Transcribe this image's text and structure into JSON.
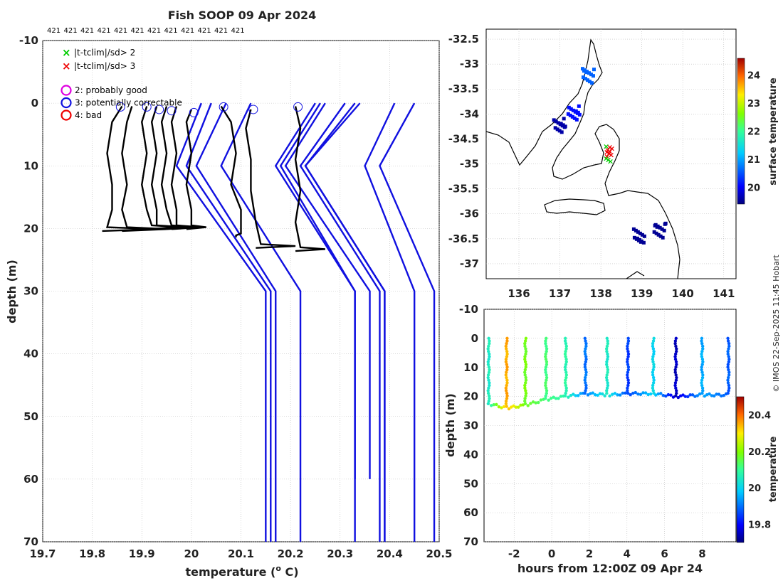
{
  "title": "Fish SOOP 09 Apr 2024",
  "credit": "© IMOS 22-Sep-2025 11:45 Hobart",
  "colors": {
    "profile": "#000000",
    "climatology": "#1010e0",
    "flag_good": "#e000e0",
    "flag_corr": "#1010e0",
    "flag_bad": "#ee0000",
    "cross2": "#00cc00",
    "cross3": "#ee0000"
  },
  "chart_data": [
    {
      "id": "profiles",
      "type": "line",
      "title": "Fish SOOP 09 Apr 2024",
      "xlabel": "temperature (",
      "xlabel_sup": "o",
      "xlabel_end": " C)",
      "ylabel": "depth (m)",
      "xlim": [
        19.7,
        20.5
      ],
      "ylim": [
        -10,
        70
      ],
      "xticks": [
        "19.7",
        "19.8",
        "19.9",
        "20",
        "20.1",
        "20.2",
        "20.3",
        "20.4",
        "20.5"
      ],
      "yticks": [
        "-10",
        "0",
        "10",
        "20",
        "30",
        "40",
        "50",
        "60",
        "70"
      ],
      "grid": true,
      "top_labels": [
        "421",
        "421",
        "421",
        "421",
        "421",
        "421",
        "421",
        "421",
        "421",
        "421",
        "421",
        "421"
      ],
      "legend": {
        "crosses": [
          {
            "label": "|t-tclim|/sd> 2",
            "color": "#00cc00"
          },
          {
            "label": "|t-tclim|/sd> 3",
            "color": "#ee0000"
          }
        ],
        "circles": [
          {
            "label": "2: probably good",
            "color": "#e000e0"
          },
          {
            "label": "3: potentially correctable",
            "color": "#1010e0"
          },
          {
            "label": "4: bad",
            "color": "#ee0000"
          }
        ]
      },
      "climatology_series": [
        {
          "surface": 20.02,
          "z10": 19.97,
          "z30": 20.15,
          "bottom": 70
        },
        {
          "surface": 20.04,
          "z10": 19.99,
          "z30": 20.16,
          "bottom": 70
        },
        {
          "surface": 20.07,
          "z10": 20.01,
          "z30": 20.17,
          "bottom": 70
        },
        {
          "surface": 20.12,
          "z10": 20.06,
          "z30": 20.22,
          "bottom": 70
        },
        {
          "surface": 20.25,
          "z10": 20.17,
          "z30": 20.33,
          "bottom": 60
        },
        {
          "surface": 20.26,
          "z10": 20.18,
          "z30": 20.33,
          "bottom": 70
        },
        {
          "surface": 20.27,
          "z10": 20.19,
          "z30": 20.36,
          "bottom": 60
        },
        {
          "surface": 20.31,
          "z10": 20.22,
          "z30": 20.38,
          "bottom": 70
        },
        {
          "surface": 20.33,
          "z10": 20.23,
          "z30": 20.39,
          "bottom": 70
        },
        {
          "surface": 20.34,
          "z10": 20.23,
          "z30": 20.39,
          "bottom": 70
        },
        {
          "surface": 20.41,
          "z10": 20.35,
          "z30": 20.45,
          "bottom": 70
        },
        {
          "surface": 20.45,
          "z10": 20.38,
          "z30": 20.49,
          "bottom": 70
        }
      ],
      "profile_series": [
        {
          "t": [
            19.86,
            19.84,
            19.83,
            19.84,
            19.84,
            19.83
          ],
          "z": [
            0.5,
            3,
            8,
            13,
            17,
            19.8
          ],
          "bottom_end": 19.93
        },
        {
          "t": [
            19.88,
            19.87,
            19.86,
            19.87,
            19.86,
            19.87
          ],
          "z": [
            0.5,
            3,
            8,
            13,
            17,
            19.8
          ],
          "bottom_end": 19.95
        },
        {
          "t": [
            19.91,
            19.9,
            19.91,
            19.9,
            19.91,
            19.92
          ],
          "z": [
            0.5,
            3,
            8,
            13,
            17,
            19.5
          ],
          "bottom_end": 19.98
        },
        {
          "t": [
            19.93,
            19.92,
            19.93,
            19.92,
            19.93,
            19.93
          ],
          "z": [
            0.5,
            3,
            8,
            13,
            17,
            19.5
          ],
          "bottom_end": 19.99
        },
        {
          "t": [
            19.95,
            19.94,
            19.95,
            19.94,
            19.95,
            19.96
          ],
          "z": [
            0.5,
            3,
            8,
            13,
            17,
            19.5
          ],
          "bottom_end": 20.01
        },
        {
          "t": [
            19.97,
            19.96,
            19.97,
            19.96,
            19.97,
            19.97
          ],
          "z": [
            0.5,
            3,
            8,
            13,
            17,
            19.5
          ],
          "bottom_end": 20.02
        },
        {
          "t": [
            20.0,
            19.99,
            20.0,
            19.99,
            20.0,
            20.0
          ],
          "z": [
            1,
            3,
            8,
            13,
            17,
            19.5
          ],
          "bottom_end": 20.03
        },
        {
          "t": [
            20.06,
            20.08,
            20.09,
            20.08,
            20.1,
            20.1
          ],
          "z": [
            0.5,
            3,
            8,
            13,
            17,
            20.8
          ],
          "bottom_end": 20.09
        },
        {
          "t": [
            20.12,
            20.11,
            20.12,
            20.12,
            20.13,
            20.14
          ],
          "z": [
            1,
            4,
            9,
            14,
            19,
            22.5
          ],
          "bottom_end": 20.21
        },
        {
          "t": [
            20.21,
            20.22,
            20.21,
            20.22,
            20.21,
            20.22
          ],
          "z": [
            0.5,
            4,
            9,
            14,
            19,
            23
          ],
          "bottom_end": 20.27
        }
      ],
      "flag_circles": [
        {
          "t": 19.857,
          "z": 0.6
        },
        {
          "t": 19.91,
          "z": 0.6
        },
        {
          "t": 19.935,
          "z": 1.0
        },
        {
          "t": 19.96,
          "z": 1.2
        },
        {
          "t": 20.005,
          "z": 1.5
        },
        {
          "t": 20.065,
          "z": 0.6
        },
        {
          "t": 20.125,
          "z": 1.0
        },
        {
          "t": 20.215,
          "z": 0.6
        }
      ]
    },
    {
      "id": "map",
      "type": "heatmap",
      "xlim": [
        135.2,
        141.3
      ],
      "ylim": [
        -37.3,
        -32.3
      ],
      "xticks": [
        "136",
        "137",
        "138",
        "139",
        "140",
        "141"
      ],
      "yticks": [
        "-32.5",
        "-33",
        "-33.5",
        "-34",
        "-34.5",
        "-35",
        "-35.5",
        "-36",
        "-36.5",
        "-37"
      ],
      "colorbar": {
        "label": "surface temperature",
        "range": [
          19.4,
          24.6
        ],
        "ticks": [
          "20",
          "21",
          "22",
          "23",
          "24"
        ]
      },
      "track_center": {
        "lon": 138.2,
        "lat": -34.8
      },
      "sst_patches": [
        {
          "lon": 137.65,
          "lat": -33.2,
          "value": 20.6
        },
        {
          "lon": 137.3,
          "lat": -33.95,
          "value": 20.1
        },
        {
          "lon": 138.9,
          "lat": -36.4,
          "value": 19.5
        },
        {
          "lon": 139.4,
          "lat": -36.3,
          "value": 19.5
        },
        {
          "lon": 136.95,
          "lat": -34.2,
          "value": 19.6
        }
      ]
    },
    {
      "id": "timeseries",
      "type": "scatter",
      "xlabel": "hours from 12:00Z 09 Apr 24",
      "ylabel": "depth (m)",
      "xlim": [
        -3.6,
        9.8
      ],
      "ylim": [
        -10,
        70
      ],
      "xticks": [
        "-2",
        "0",
        "2",
        "4",
        "6",
        "8"
      ],
      "yticks": [
        "-10",
        "0",
        "10",
        "20",
        "30",
        "40",
        "50",
        "60",
        "70"
      ],
      "colorbar": {
        "label": "temperature",
        "range": [
          19.7,
          20.5
        ],
        "ticks": [
          "19.8",
          "20",
          "20.2",
          "20.4"
        ]
      },
      "casts": [
        {
          "x": -3.35,
          "bottom": 22.5,
          "temp": 20.05
        },
        {
          "x": -2.4,
          "bottom": 24.0,
          "temp": 20.35
        },
        {
          "x": -1.4,
          "bottom": 23.0,
          "temp": 20.18
        },
        {
          "x": -0.3,
          "bottom": 21.0,
          "temp": 20.12
        },
        {
          "x": 0.75,
          "bottom": 20.0,
          "temp": 20.08
        },
        {
          "x": 1.8,
          "bottom": 19.0,
          "temp": 19.9
        },
        {
          "x": 2.95,
          "bottom": 19.5,
          "temp": 20.05
        },
        {
          "x": 4.05,
          "bottom": 19.0,
          "temp": 19.85
        },
        {
          "x": 5.4,
          "bottom": 19.0,
          "temp": 20.0
        },
        {
          "x": 6.6,
          "bottom": 20.0,
          "temp": 19.75
        },
        {
          "x": 8.0,
          "bottom": 19.5,
          "temp": 19.95
        },
        {
          "x": 9.4,
          "bottom": 19.5,
          "temp": 19.88
        }
      ]
    }
  ]
}
